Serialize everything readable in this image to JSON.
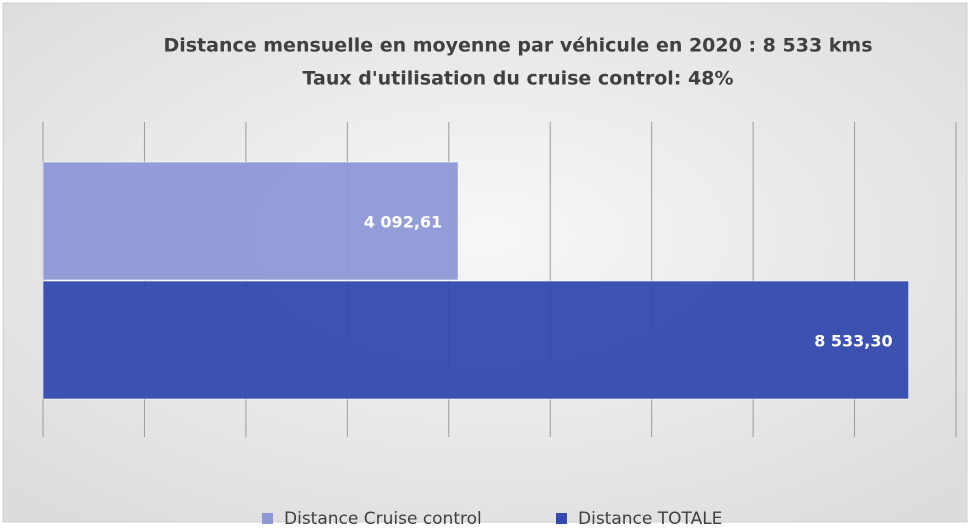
{
  "chart_data": {
    "type": "bar",
    "orientation": "horizontal",
    "title": "Distance mensuelle en moyenne par véhicule en 2020 : 8 533 kms",
    "subtitle": "Taux d'utilisation du cruise control: 48%",
    "categories": [
      null
    ],
    "series": [
      {
        "name": "Distance Cruise control",
        "color": "#8f98d6",
        "values": [
          4092.61
        ],
        "value_labels": [
          "4 092,61"
        ]
      },
      {
        "name": "Distance TOTALE",
        "color": "#3449b0",
        "values": [
          8533.3
        ],
        "value_labels": [
          "8 533,30"
        ]
      }
    ],
    "xlim": [
      0,
      9000
    ],
    "xticks": [
      0,
      1000,
      2000,
      3000,
      4000,
      5000,
      6000,
      7000,
      8000,
      9000
    ],
    "grid": true,
    "legend": "bottom"
  }
}
